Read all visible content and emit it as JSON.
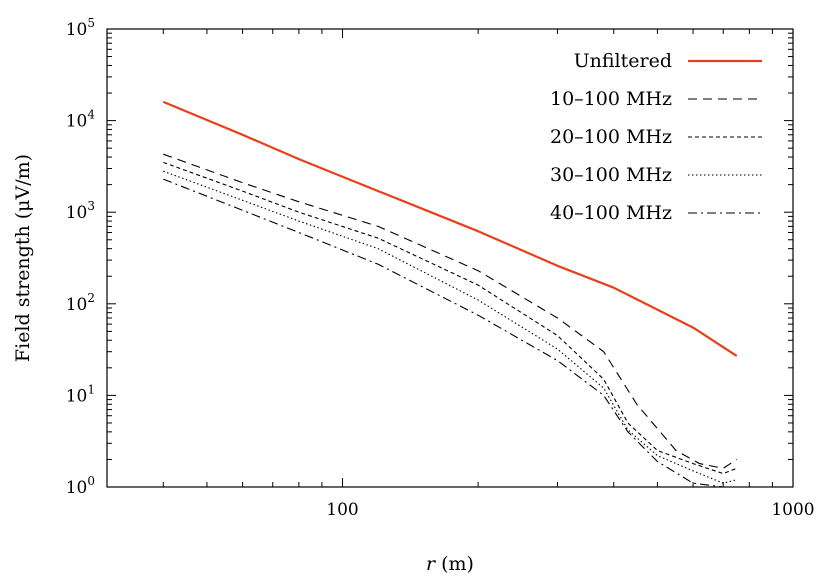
{
  "chart_data": {
    "type": "line",
    "xscale": "log",
    "yscale": "log",
    "xlim": [
      30,
      1000
    ],
    "ylim": [
      1,
      100000
    ],
    "xlabel_italic": "r",
    "xlabel_unit": "(m)",
    "ylabel": "Field strength (μV/m)",
    "x_ticks": [
      {
        "value": 100,
        "label": "100"
      },
      {
        "value": 1000,
        "label": "1000"
      }
    ],
    "y_ticks": [
      {
        "value": 1,
        "base": "10",
        "exp": "0"
      },
      {
        "value": 10,
        "base": "10",
        "exp": "1"
      },
      {
        "value": 100,
        "base": "10",
        "exp": "2"
      },
      {
        "value": 1000,
        "base": "10",
        "exp": "3"
      },
      {
        "value": 10000,
        "base": "10",
        "exp": "4"
      },
      {
        "value": 100000,
        "base": "10",
        "exp": "5"
      }
    ],
    "legend_position": "top-right",
    "series": [
      {
        "name": "Unfiltered",
        "color": "#e8401c",
        "style": "solid",
        "x": [
          40,
          60,
          80,
          120,
          200,
          300,
          400,
          600,
          750
        ],
        "y": [
          16000,
          7000,
          3800,
          1700,
          620,
          260,
          150,
          55,
          27
        ]
      },
      {
        "name": "10–100 MHz",
        "color": "#000000",
        "style": "dashed",
        "x": [
          40,
          60,
          80,
          120,
          200,
          300,
          380,
          450,
          550,
          620,
          700,
          750
        ],
        "y": [
          4300,
          2100,
          1300,
          700,
          230,
          70,
          30,
          8,
          2.5,
          1.8,
          1.6,
          2
        ]
      },
      {
        "name": "20–100 MHz",
        "color": "#000000",
        "style": "short-dashed",
        "x": [
          40,
          60,
          80,
          120,
          200,
          300,
          380,
          430,
          500,
          600,
          700,
          750
        ],
        "y": [
          3500,
          1700,
          1000,
          520,
          160,
          45,
          15,
          5,
          2.5,
          1.8,
          1.4,
          1.6
        ]
      },
      {
        "name": "30–100 MHz",
        "color": "#000000",
        "style": "dotted",
        "x": [
          40,
          60,
          80,
          120,
          200,
          300,
          380,
          430,
          500,
          600,
          700,
          750
        ],
        "y": [
          2800,
          1350,
          800,
          400,
          110,
          32,
          12,
          4.2,
          2.2,
          1.5,
          1.1,
          1.2
        ]
      },
      {
        "name": "40–100 MHz",
        "color": "#000000",
        "style": "dash-dot",
        "x": [
          40,
          60,
          80,
          120,
          200,
          300,
          380,
          430,
          500,
          600,
          700,
          750
        ],
        "y": [
          2300,
          1050,
          600,
          270,
          75,
          24,
          10,
          4,
          1.9,
          1.1,
          1.0,
          1.0
        ]
      }
    ]
  }
}
